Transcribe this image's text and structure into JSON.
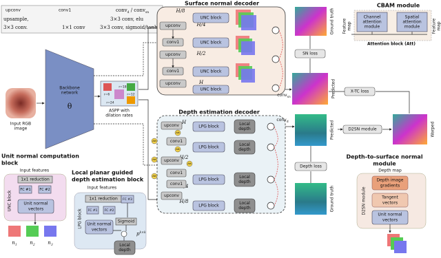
{
  "legend": {
    "upconv": {
      "name": "upconv",
      "desc": [
        "upsample,",
        "3×3 conv."
      ]
    },
    "conv1": {
      "name": "conv1",
      "desc": [
        "1×1 conv"
      ]
    },
    "conv_out": {
      "name": [
        {
          "text": "conv",
          "sub": "d"
        },
        {
          "text": " / conv",
          "sub": "sn"
        }
      ],
      "desc": [
        "3×3 conv, elu",
        "3×3 conv, sigmoid/tanh"
      ]
    }
  },
  "encoder": {
    "input": [
      "Input RGB",
      "image"
    ],
    "backbone": [
      "Backbone",
      "network"
    ],
    "theta": "θ",
    "aspp": [
      "ASPP with",
      "dilation rates"
    ],
    "rates": [
      "r=6",
      "r=12",
      "r=24",
      "r=18"
    ]
  },
  "sn_decoder": {
    "title": "Surface normal decoder",
    "scales": [
      "H/8",
      "H/4",
      "H/2",
      "H"
    ],
    "upconv": [
      "upconv",
      "upconv",
      "upconv"
    ],
    "conv1": [
      "conv1",
      "conv1",
      "conv1"
    ],
    "unc": [
      "UNC block",
      "UNC block",
      "UNC block",
      "UNC block"
    ],
    "out": {
      "text": "conv",
      "sub": "sn"
    }
  },
  "depth_decoder": {
    "title": "Depth estimation decoder",
    "scales": [
      "H",
      "H/2",
      "H/4",
      "H/8"
    ],
    "upconv": [
      "upconv",
      "upconv",
      "upconv"
    ],
    "conv1": [
      "conv1",
      "conv1",
      "conv1"
    ],
    "lpg": [
      "LPG block",
      "LPG block",
      "LPG block",
      "LPG block"
    ],
    "local_depth": [
      [
        "Local",
        "depth"
      ],
      [
        "Local",
        "depth"
      ],
      [
        "Local",
        "depth"
      ],
      [
        "Local",
        "depth"
      ]
    ],
    "att": [
      "Att",
      "Att",
      "Att",
      "Att",
      "Att",
      "Att"
    ],
    "out": {
      "text": "conv",
      "sub": "d"
    }
  },
  "outputs": {
    "sn_ground_truth": "Ground truth",
    "sn_loss": "SN loss",
    "sn_predicted": "Predicted",
    "xtc_loss": "X-TC loss",
    "d2sn": "D2SN module",
    "depth_predicted": "Predicted",
    "depth_loss": "Depth loss",
    "depth_ground_truth": "Ground truth",
    "warped": "Warped"
  },
  "cbam": {
    "title": "CBAM module",
    "input": [
      "Feature",
      "map"
    ],
    "channel": [
      "Channel",
      "attention",
      "module"
    ],
    "spatial": [
      "Spatial",
      "attention",
      "module"
    ],
    "caption": "Attention block (Att)",
    "output": [
      "Feature",
      "map"
    ]
  },
  "unc_block": {
    "title": [
      "Unit normal computation",
      "block"
    ],
    "input": "Input features",
    "reduction": "1x1 reduction",
    "fc": [
      "FC #1",
      "FC #2"
    ],
    "vectors": [
      "Unit normal",
      "vectors"
    ],
    "side": "UNC block",
    "normals": [
      {
        "text": "n",
        "sub": "1"
      },
      {
        "text": "n",
        "sub": "2"
      },
      {
        "text": "n",
        "sub": "3"
      }
    ]
  },
  "lpg_block": {
    "title": [
      "Local planar guided",
      "depth estimation block"
    ],
    "input": "Input features",
    "reduction": "1x1 reduction",
    "fc": [
      "FC #1",
      "FC #2",
      "FC #3"
    ],
    "sigmoid": "Sigmoid",
    "vectors": [
      "Unit normal",
      "vectors"
    ],
    "local_depth": [
      "Local",
      "depth"
    ],
    "side": "LPG block",
    "patch": {
      "text": "p",
      "sup": "k×k"
    }
  },
  "d2sn_block": {
    "title": [
      "Depth-to-surface normal",
      "module"
    ],
    "input": "Depth map",
    "gradients": [
      "Depth image",
      "gradients"
    ],
    "tangent": [
      "Tangent",
      "vectors"
    ],
    "vectors": [
      "Unit normal",
      "vectors"
    ],
    "side": "D2SN module"
  }
}
